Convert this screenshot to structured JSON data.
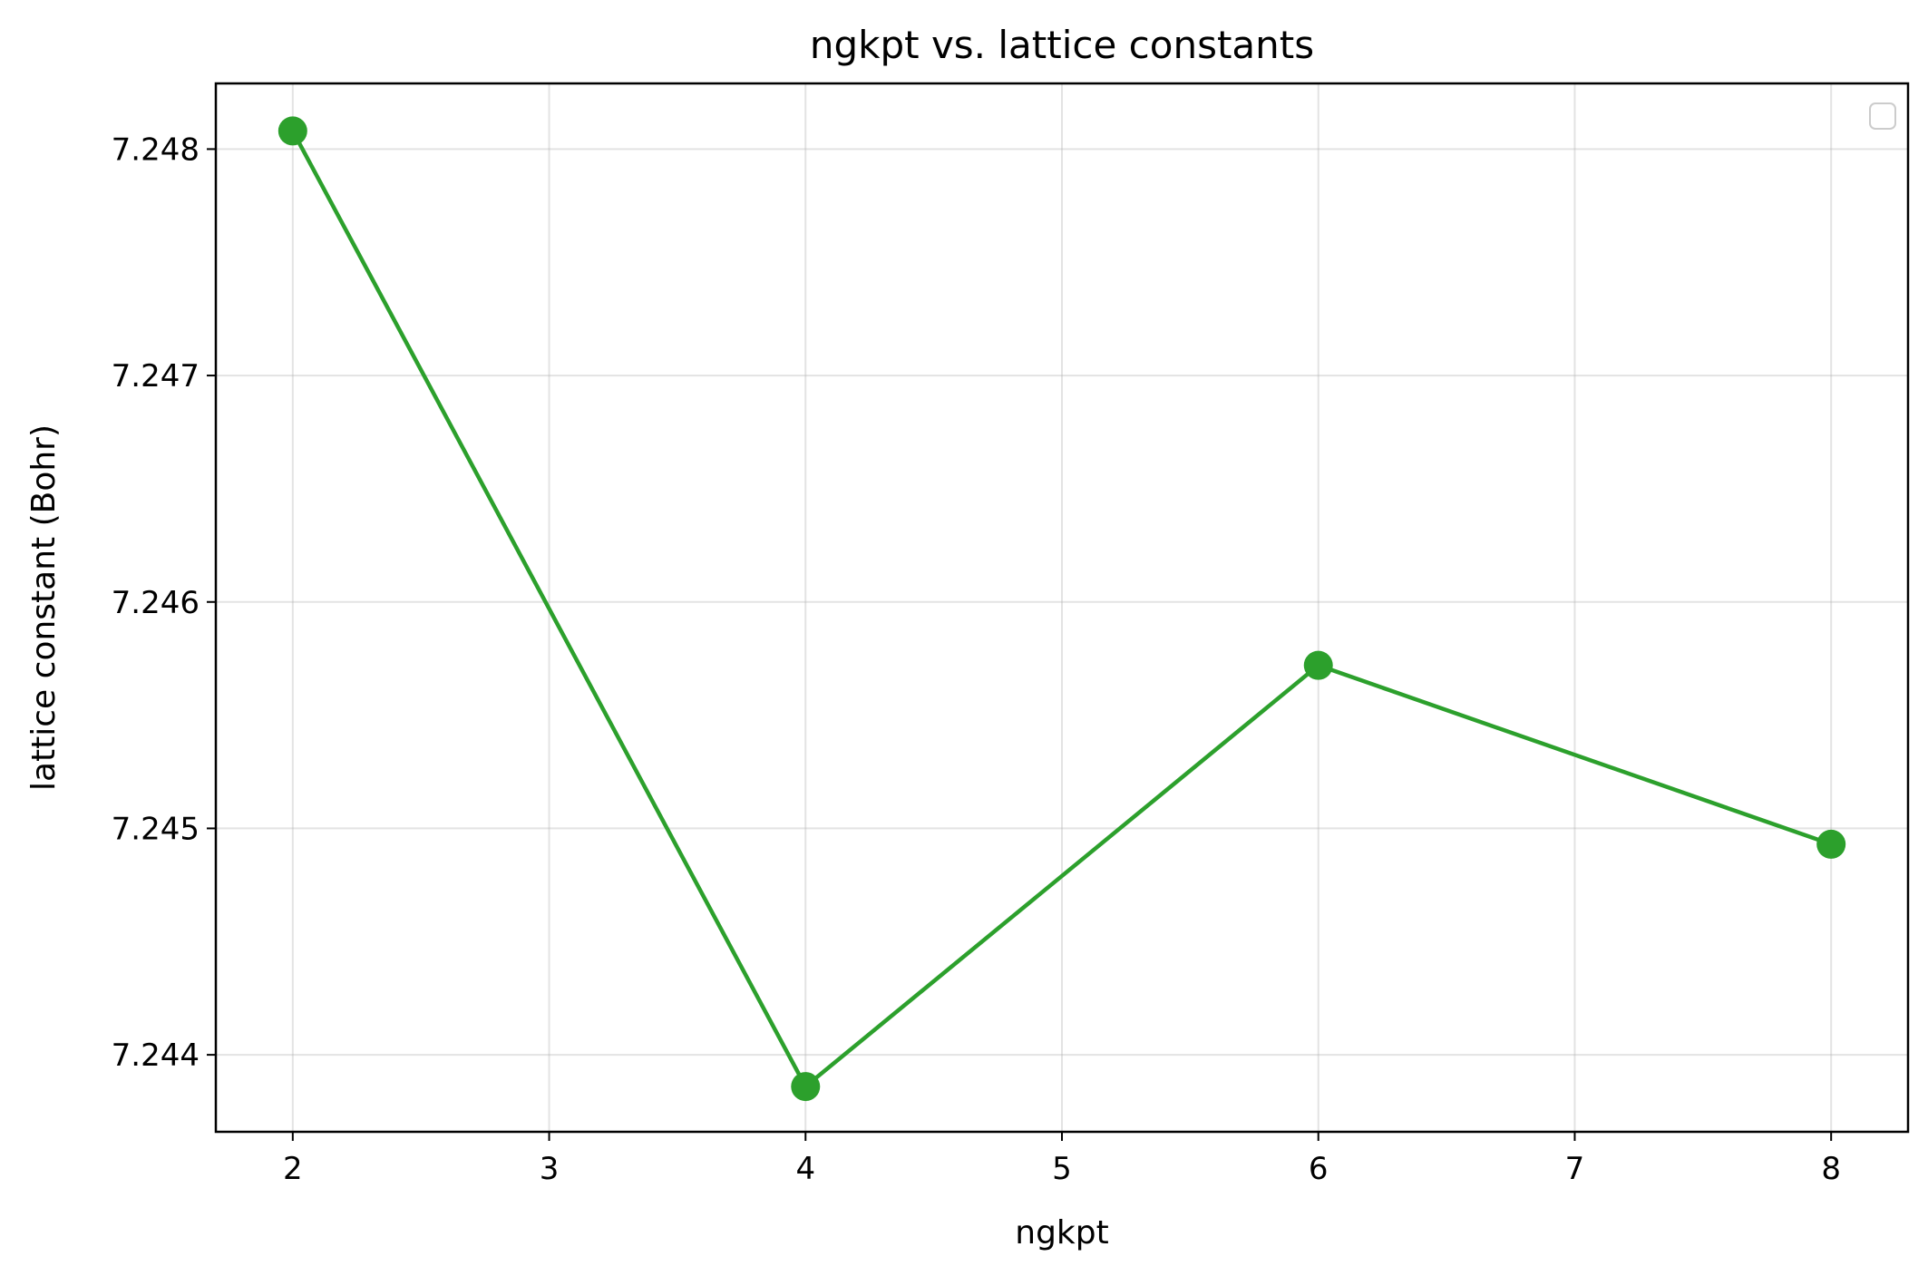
{
  "chart_data": {
    "type": "line",
    "title": "ngkpt vs. lattice constants",
    "xlabel": "ngkpt",
    "ylabel": "lattice constant (Bohr)",
    "x": [
      2,
      4,
      6,
      8
    ],
    "series": [
      {
        "values": [
          7.24808,
          7.24386,
          7.24572,
          7.24493
        ],
        "color": "#2ca02c",
        "marker": "circle"
      }
    ],
    "xlim": [
      1.7,
      8.3
    ],
    "ylim": [
      7.24366,
      7.24829
    ],
    "xticks": [
      2,
      3,
      4,
      5,
      6,
      7,
      8
    ],
    "yticks": [
      7.244,
      7.245,
      7.246,
      7.247,
      7.248
    ],
    "xtick_labels": [
      "2",
      "3",
      "4",
      "5",
      "6",
      "7",
      "8"
    ],
    "ytick_labels": [
      "7.244",
      "7.245",
      "7.246",
      "7.247",
      "7.248"
    ],
    "grid": true,
    "legend": "top-right"
  }
}
